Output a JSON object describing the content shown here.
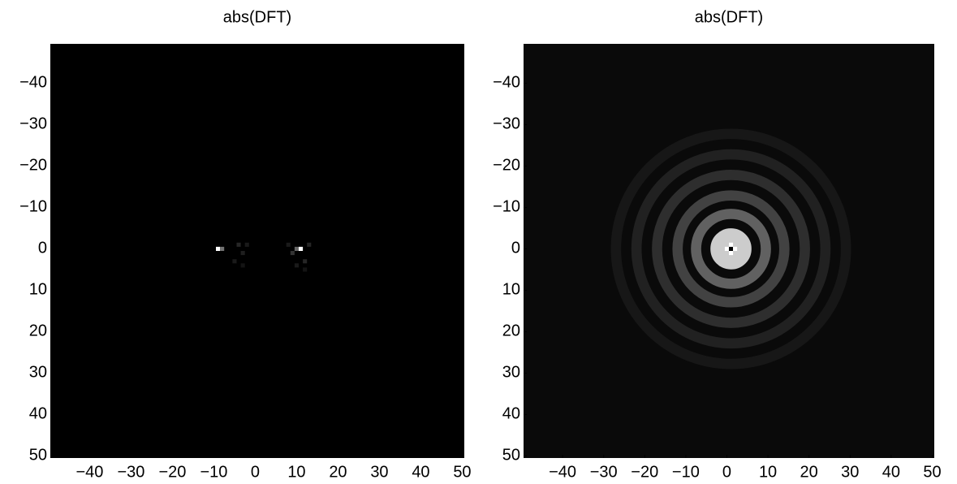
{
  "chart_data": [
    {
      "type": "heatmap",
      "title": "abs(DFT)",
      "colormap": "gray",
      "background": 0,
      "xlim": [
        -49.5,
        50.5
      ],
      "ylim": [
        -49.5,
        50.5
      ],
      "y_reversed": true,
      "xticks": [
        {
          "value": -40,
          "label": "−40"
        },
        {
          "value": -30,
          "label": "−30"
        },
        {
          "value": -20,
          "label": "−20"
        },
        {
          "value": -10,
          "label": "−10"
        },
        0,
        10,
        20,
        30,
        40,
        50
      ],
      "yticks": [
        {
          "value": -40,
          "label": "−40"
        },
        {
          "value": -30,
          "label": "−30"
        },
        {
          "value": -20,
          "label": "−20"
        },
        {
          "value": -10,
          "label": "−10"
        },
        0,
        10,
        20,
        30,
        40,
        50
      ],
      "points": [
        [
          -9,
          0,
          1
        ],
        [
          -8,
          0,
          0.45
        ],
        [
          11,
          0,
          1
        ],
        [
          10,
          0,
          0.4
        ],
        [
          -4,
          -1,
          0.15
        ],
        [
          -3,
          1,
          0.12
        ],
        [
          -5,
          3,
          0.1
        ],
        [
          -2,
          -1,
          0.1
        ],
        [
          -3,
          4,
          0.08
        ],
        [
          9,
          1,
          0.2
        ],
        [
          12,
          3,
          0.15
        ],
        [
          13,
          -1,
          0.15
        ],
        [
          10,
          4,
          0.1
        ],
        [
          8,
          -1,
          0.1
        ],
        [
          12,
          5,
          0.08
        ]
      ],
      "rings": []
    },
    {
      "type": "heatmap",
      "title": "abs(DFT)",
      "colormap": "gray",
      "background": 0.04,
      "xlim": [
        -49.5,
        50.5
      ],
      "ylim": [
        -49.5,
        50.5
      ],
      "y_reversed": true,
      "xticks": [
        {
          "value": -40,
          "label": "−40"
        },
        {
          "value": -30,
          "label": "−30"
        },
        {
          "value": -20,
          "label": "−20"
        },
        {
          "value": -10,
          "label": "−10"
        },
        0,
        10,
        20,
        30,
        40,
        50
      ],
      "yticks": [
        {
          "value": -40,
          "label": "−40"
        },
        {
          "value": -30,
          "label": "−30"
        },
        {
          "value": -20,
          "label": "−20"
        },
        {
          "value": -10,
          "label": "−10"
        },
        0,
        10,
        20,
        30,
        40,
        50
      ],
      "center": [
        1,
        0
      ],
      "rings": [
        {
          "radius": 28,
          "width": 2.5,
          "value": 0.09
        },
        {
          "radius": 23,
          "width": 2.5,
          "value": 0.13
        },
        {
          "radius": 18,
          "width": 2.5,
          "value": 0.18
        },
        {
          "radius": 13,
          "width": 2.5,
          "value": 0.26
        },
        {
          "radius": 8.5,
          "width": 2.5,
          "value": 0.38
        },
        {
          "radius": 2.5,
          "width": 5,
          "value": 0.8
        }
      ],
      "points": [
        [
          1,
          0,
          0
        ],
        [
          0,
          0,
          1
        ],
        [
          2,
          0,
          1
        ],
        [
          1,
          -1,
          1
        ],
        [
          1,
          1,
          1
        ]
      ]
    }
  ]
}
